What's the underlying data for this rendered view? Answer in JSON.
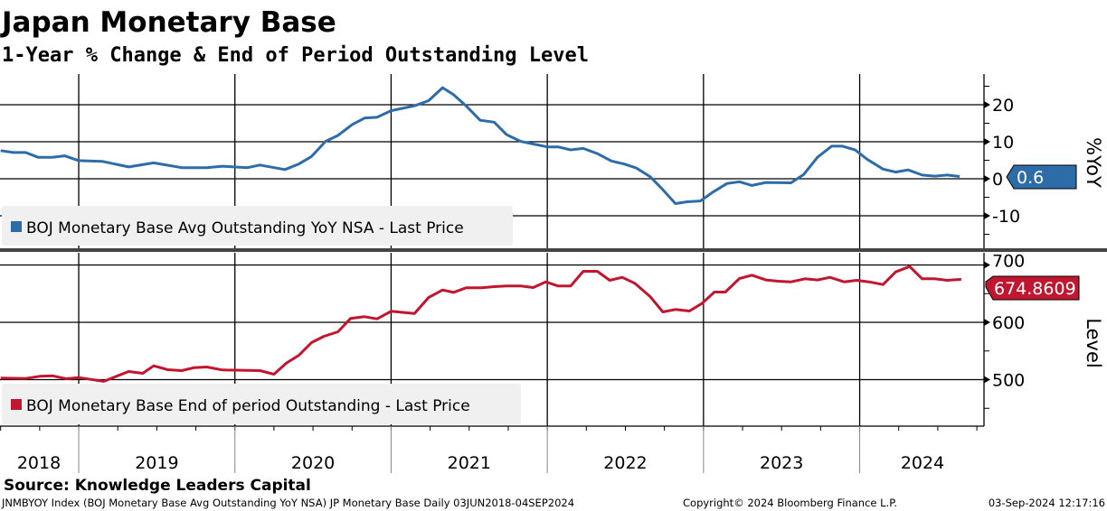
{
  "header": {
    "title": "Japan Monetary Base",
    "subtitle": "1-Year % Change & End of Period Outstanding Level"
  },
  "colors": {
    "yoy": "#2e6ca8",
    "level": "#c0162f",
    "separator": "#444444",
    "legend_bg": "#f0f0f0"
  },
  "chart_data": [
    {
      "type": "line",
      "panel": "top",
      "series_name": "BOJ Monetary Base Avg Outstanding YoY NSA - Last Price",
      "ylabel": "%YoY",
      "yticks": [
        20,
        10,
        0,
        -10
      ],
      "ylim": [
        -18.8,
        28.3
      ],
      "last_value_label": "0.6",
      "grid": true,
      "x": [
        2018.5,
        2018.58,
        2018.66,
        2018.74,
        2018.83,
        2018.91,
        2019.0,
        2019.15,
        2019.32,
        2019.48,
        2019.66,
        2019.82,
        2019.92,
        2020.08,
        2020.16,
        2020.32,
        2020.41,
        2020.49,
        2020.58,
        2020.66,
        2020.75,
        2020.83,
        2020.91,
        2021.0,
        2021.15,
        2021.24,
        2021.33,
        2021.4,
        2021.48,
        2021.57,
        2021.66,
        2021.74,
        2021.83,
        2022.0,
        2022.07,
        2022.15,
        2022.23,
        2022.32,
        2022.41,
        2022.49,
        2022.57,
        2022.66,
        2022.73,
        2022.82,
        2022.9,
        2022.98,
        2023.06,
        2023.15,
        2023.23,
        2023.31,
        2023.4,
        2023.56,
        2023.64,
        2023.73,
        2023.82,
        2023.89,
        2023.97,
        2024.05,
        2024.15,
        2024.23,
        2024.31,
        2024.4,
        2024.48,
        2024.56,
        2024.64
      ],
      "values": [
        7.6,
        7.1,
        7.1,
        5.8,
        5.8,
        6.2,
        4.9,
        4.7,
        3.2,
        4.3,
        3.0,
        3.0,
        3.4,
        3.0,
        3.7,
        2.5,
        4.0,
        6.0,
        10.1,
        11.7,
        14.6,
        16.4,
        16.6,
        18.4,
        19.7,
        21.1,
        24.6,
        22.7,
        19.7,
        15.8,
        15.3,
        11.9,
        10.1,
        8.6,
        8.6,
        7.8,
        8.2,
        6.8,
        4.8,
        4.0,
        2.9,
        0.5,
        -2.5,
        -6.7,
        -6.2,
        -6.0,
        -3.6,
        -1.3,
        -0.8,
        -1.8,
        -1.0,
        -1.1,
        1.1,
        5.8,
        8.8,
        8.8,
        7.8,
        5.2,
        2.6,
        1.8,
        2.4,
        1.0,
        0.7,
        1.0,
        0.6
      ]
    },
    {
      "type": "line",
      "panel": "bottom",
      "series_name": "BOJ Monetary Base End of period Outstanding - Last Price",
      "ylabel": "Level",
      "yticks": [
        700,
        600,
        500
      ],
      "ylim": [
        420,
        722
      ],
      "last_value_label": "674.8609",
      "grid": true,
      "x": [
        2018.5,
        2018.66,
        2018.75,
        2018.83,
        2018.92,
        2019.0,
        2019.16,
        2019.25,
        2019.32,
        2019.41,
        2019.48,
        2019.57,
        2019.66,
        2019.74,
        2019.82,
        2019.92,
        2020.16,
        2020.25,
        2020.33,
        2020.41,
        2020.49,
        2020.57,
        2020.66,
        2020.74,
        2020.83,
        2020.91,
        2021.0,
        2021.15,
        2021.24,
        2021.33,
        2021.4,
        2021.48,
        2021.58,
        2021.66,
        2021.74,
        2021.83,
        2021.91,
        2021.99,
        2022.07,
        2022.15,
        2022.23,
        2022.32,
        2022.4,
        2022.48,
        2022.56,
        2022.66,
        2022.74,
        2022.82,
        2022.91,
        2022.99,
        2023.07,
        2023.14,
        2023.23,
        2023.31,
        2023.4,
        2023.48,
        2023.56,
        2023.65,
        2023.73,
        2023.81,
        2023.9,
        2023.98,
        2024.06,
        2024.15,
        2024.23,
        2024.32,
        2024.4,
        2024.48,
        2024.56,
        2024.65
      ],
      "values": [
        502.6,
        502,
        505.8,
        506.8,
        501.6,
        503.7,
        497,
        506.8,
        514.2,
        511,
        524.1,
        517.3,
        515.7,
        521,
        522,
        516.8,
        515.7,
        509.4,
        528.9,
        542.5,
        564.6,
        575.6,
        583.5,
        606.6,
        609.7,
        606,
        619.2,
        615.5,
        643.3,
        656.4,
        652.2,
        660.1,
        660.1,
        662.2,
        663.3,
        663.3,
        660.6,
        670.6,
        663.3,
        663.3,
        689,
        689,
        673.2,
        678.5,
        668,
        644.4,
        618.1,
        622.3,
        619.7,
        632.8,
        652.8,
        652.8,
        676.4,
        682.2,
        673.8,
        671.7,
        670.6,
        675.9,
        673.8,
        678.5,
        670.6,
        673.2,
        670.6,
        665.9,
        687.9,
        697.3,
        675.9,
        675.9,
        673.2,
        674.9
      ]
    }
  ],
  "x_axis": {
    "year_labels": [
      "2018",
      "2019",
      "2020",
      "2021",
      "2022",
      "2023",
      "2024"
    ],
    "years": [
      2018,
      2019,
      2020,
      2021,
      2022,
      2023,
      2024
    ]
  },
  "footer": {
    "source": "Source: Knowledge Leaders Capital",
    "ticker": "JNMBYOY Index (BOJ Monetary Base Avg Outstanding YoY NSA) JP Monetary Base  Daily 03JUN2018-04SEP2024",
    "copyright": "Copyright© 2024 Bloomberg Finance L.P.",
    "timestamp": "03-Sep-2024 12:17:16"
  }
}
